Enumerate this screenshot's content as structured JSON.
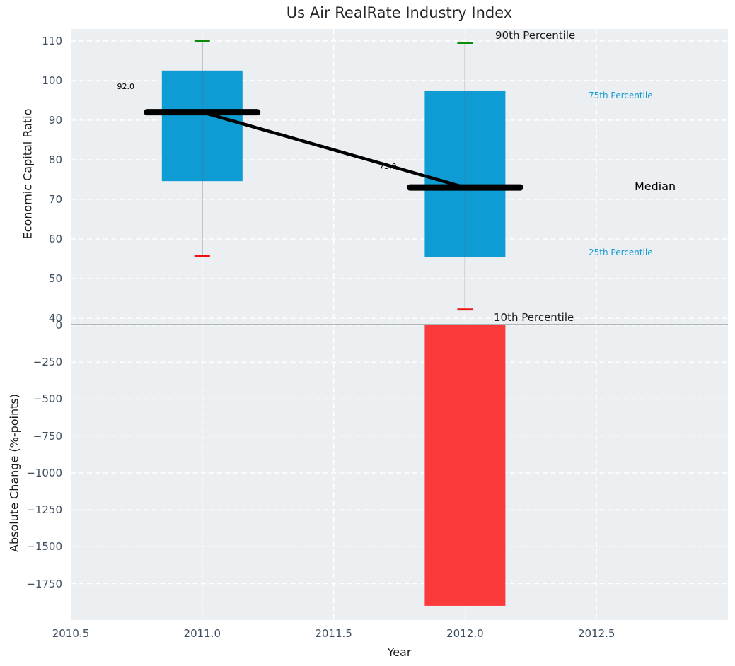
{
  "title": "Us Air RealRate Industry Index",
  "colors": {
    "panel_background": "#eceff1",
    "gridline": "#ffffff",
    "box_fill": "#0f9cd5",
    "negative_bar_fill": "#fb3b3b",
    "p90_cap": "#0a8c0a",
    "p10_cap": "#ee1111",
    "median_line": "#000000",
    "percentile_label_blue": "#1799d1",
    "tick_label": "#3d4e60",
    "axis_label": "#1a1a1a"
  },
  "annotations": {
    "p90_label": "90th Percentile",
    "p75_label": "75th Percentile",
    "median_label": "Median",
    "p25_label": "25th Percentile",
    "p10_label": "10th Percentile",
    "median_value_2011": "92.0",
    "median_value_2012": "73.0"
  },
  "chart_data": {
    "type": "boxplot+bar",
    "title": "Us Air RealRate Industry Index",
    "xlabel": "Year",
    "xticks": [
      2010.5,
      2011.0,
      2011.5,
      2012.0,
      2012.5
    ],
    "xlim": [
      2010.5,
      2013.0
    ],
    "grid": true,
    "top_panel": {
      "ylabel": "Economic Capital Ratio",
      "ylim": [
        38.4,
        113.0
      ],
      "yticks": [
        110,
        100,
        90,
        80,
        70,
        60,
        50,
        40
      ],
      "series": [
        {
          "year": 2011,
          "p10": 55.7,
          "p25": 74.6,
          "median": 92.0,
          "p75": 102.5,
          "p90": 110.0
        },
        {
          "year": 2012,
          "p10": 42.2,
          "p25": 55.4,
          "median": 73.0,
          "p75": 97.3,
          "p90": 109.5
        }
      ],
      "median_trend": [
        {
          "year": 2011,
          "value": 92.0
        },
        {
          "year": 2012,
          "value": 73.0
        }
      ]
    },
    "bottom_panel": {
      "ylabel": "Absolute Change (%-points)",
      "ylim": [
        -1992,
        5
      ],
      "yticks": [
        0,
        -250,
        -500,
        -750,
        -1000,
        -1250,
        -1500,
        -1750
      ],
      "bars": [
        {
          "year": 2012,
          "value": -1900
        }
      ]
    }
  }
}
